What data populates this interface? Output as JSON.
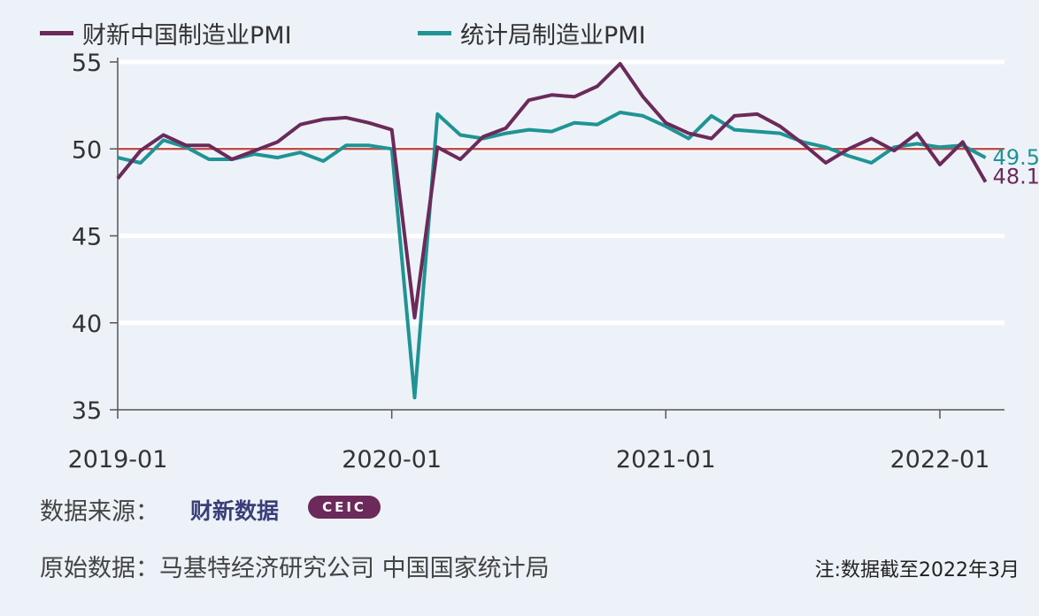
{
  "chart_data": {
    "type": "line",
    "x_start": "2019-01",
    "x": [
      "2019-01",
      "2019-02",
      "2019-03",
      "2019-04",
      "2019-05",
      "2019-06",
      "2019-07",
      "2019-08",
      "2019-09",
      "2019-10",
      "2019-11",
      "2019-12",
      "2020-01",
      "2020-02",
      "2020-03",
      "2020-04",
      "2020-05",
      "2020-06",
      "2020-07",
      "2020-08",
      "2020-09",
      "2020-10",
      "2020-11",
      "2020-12",
      "2021-01",
      "2021-02",
      "2021-03",
      "2021-04",
      "2021-05",
      "2021-06",
      "2021-07",
      "2021-08",
      "2021-09",
      "2021-10",
      "2021-11",
      "2021-12",
      "2022-01",
      "2022-02",
      "2022-03"
    ],
    "xticks": [
      "2019-01",
      "2020-01",
      "2021-01",
      "2022-01"
    ],
    "yticks": [
      55,
      50,
      45,
      40,
      35
    ],
    "ylim": [
      35,
      55
    ],
    "reference_line": 50,
    "grid": "horizontal",
    "legend_placement": "top",
    "series": [
      {
        "name": "财新中国制造业PMI",
        "color": "#6b2a5a",
        "end_label": "48.1",
        "values": [
          48.3,
          49.9,
          50.8,
          50.2,
          50.2,
          49.4,
          49.9,
          50.4,
          51.4,
          51.7,
          51.8,
          51.5,
          51.1,
          40.3,
          50.1,
          49.4,
          50.7,
          51.2,
          52.8,
          53.1,
          53.0,
          53.6,
          54.9,
          53.0,
          51.5,
          50.9,
          50.6,
          51.9,
          52.0,
          51.3,
          50.3,
          49.2,
          50.0,
          50.6,
          49.9,
          50.9,
          49.1,
          50.4,
          48.1
        ]
      },
      {
        "name": "统计局制造业PMI",
        "color": "#1f9494",
        "end_label": "49.5",
        "values": [
          49.5,
          49.2,
          50.5,
          50.1,
          49.4,
          49.4,
          49.7,
          49.5,
          49.8,
          49.3,
          50.2,
          50.2,
          50.0,
          35.7,
          52.0,
          50.8,
          50.6,
          50.9,
          51.1,
          51.0,
          51.5,
          51.4,
          52.1,
          51.9,
          51.3,
          50.6,
          51.9,
          51.1,
          51.0,
          50.9,
          50.4,
          50.1,
          49.6,
          49.2,
          50.1,
          50.3,
          50.1,
          50.2,
          49.5
        ]
      }
    ],
    "reference_color": "#c0504d"
  },
  "footer": {
    "source_label": "数据来源：",
    "logo_caixin": "财新数据",
    "logo_ceic": "CEIC",
    "raw_label": "原始数据：马基特经济研究公司  中国国家统计局",
    "note": "注:数据截至2022年3月"
  }
}
